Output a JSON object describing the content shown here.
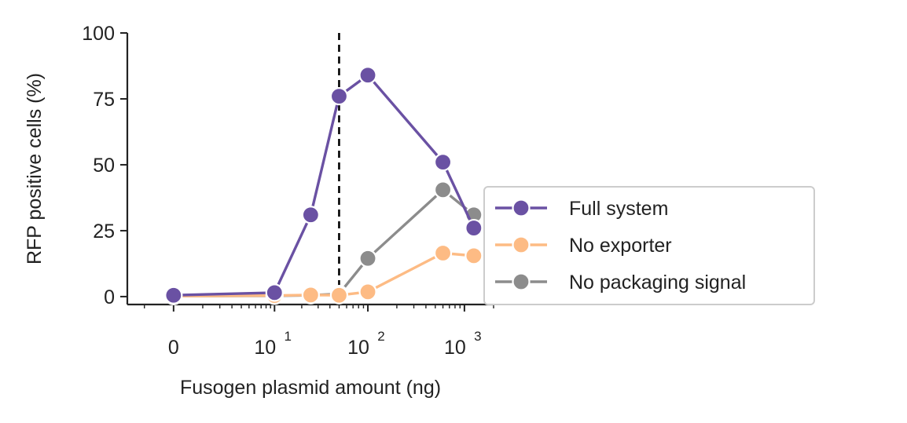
{
  "chart_data": {
    "type": "line",
    "xlabel": "Fusogen plasmid amount (ng)",
    "ylabel": "RFP positive cells (%)",
    "x_scale": "symlog",
    "xlim": [
      -2,
      2000
    ],
    "ylim": [
      -3,
      100
    ],
    "x_ticks": [
      {
        "value": 0,
        "base": "0",
        "exp": ""
      },
      {
        "value": 10,
        "base": "10",
        "exp": "1"
      },
      {
        "value": 100,
        "base": "10",
        "exp": "2"
      },
      {
        "value": 1000,
        "base": "10",
        "exp": "3"
      }
    ],
    "y_ticks": [
      {
        "value": 0,
        "label": "0"
      },
      {
        "value": 25,
        "label": "25"
      },
      {
        "value": 50,
        "label": "50"
      },
      {
        "value": 75,
        "label": "75"
      },
      {
        "value": 100,
        "label": "100"
      }
    ],
    "reference_line": {
      "x": 50,
      "style": "dashed",
      "color": "#000000"
    },
    "legend_position": "right",
    "grid": false,
    "series": [
      {
        "name": "Full system",
        "color": "#6a51a3",
        "points": [
          [
            0,
            0.5
          ],
          [
            10,
            1.5
          ],
          [
            25,
            31
          ],
          [
            50,
            76
          ],
          [
            100,
            84
          ],
          [
            600,
            51
          ],
          [
            1250,
            26
          ]
        ]
      },
      {
        "name": "No exporter",
        "color": "#fdbb84",
        "points": [
          [
            0,
            0.2
          ],
          [
            10,
            0.4
          ],
          [
            25,
            0.6
          ],
          [
            50,
            0.5
          ],
          [
            100,
            1.8
          ],
          [
            600,
            16.5
          ],
          [
            1250,
            15.5
          ]
        ]
      },
      {
        "name": "No packaging signal",
        "color": "#8c8c8c",
        "points": [
          [
            0,
            0.2
          ],
          [
            10,
            0.3
          ],
          [
            25,
            0.5
          ],
          [
            50,
            1
          ],
          [
            100,
            14.5
          ],
          [
            600,
            40.5
          ],
          [
            1250,
            31
          ]
        ]
      }
    ]
  }
}
